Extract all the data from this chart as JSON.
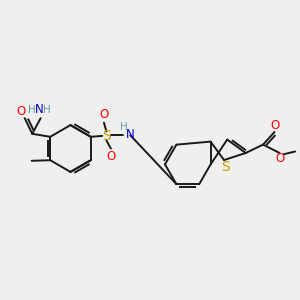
{
  "bg_color": "#efefef",
  "bond_color": "#1a1a1a",
  "bond_width": 1.4,
  "atom_colors": {
    "O": "#ff0000",
    "N": "#0000cd",
    "S_sulfonyl": "#c8a000",
    "S_thio": "#c8a000",
    "H": "#5f9ea0"
  },
  "font_size_atom": 8.5,
  "font_size_methyl": 8.0
}
